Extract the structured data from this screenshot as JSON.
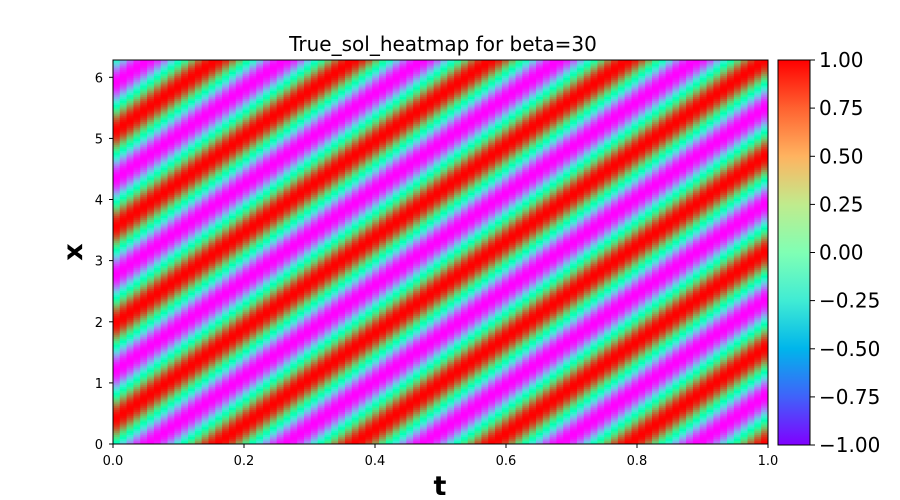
{
  "chart_data": {
    "type": "heatmap",
    "title": "True_sol_heatmap  for beta=30",
    "xlabel": "t",
    "ylabel": "x",
    "xlim": [
      0.0,
      1.0
    ],
    "ylim": [
      0,
      6.283
    ],
    "x_ticks": [
      "0.0",
      "0.2",
      "0.4",
      "0.6",
      "0.8",
      "1.0"
    ],
    "y_ticks": [
      "0",
      "1",
      "2",
      "3",
      "4",
      "5",
      "6"
    ],
    "colorbar": {
      "range": [
        -1.0,
        1.0
      ],
      "colormap": "rainbow",
      "ticks": [
        "1.00",
        "0.75",
        "0.50",
        "0.25",
        "0.00",
        "−0.25",
        "−0.50",
        "−0.75",
        "−1.00"
      ]
    },
    "field": {
      "expression": "u(x,t) = sin(4x - beta*t)",
      "beta": 30,
      "x_frequency": 4
    }
  }
}
